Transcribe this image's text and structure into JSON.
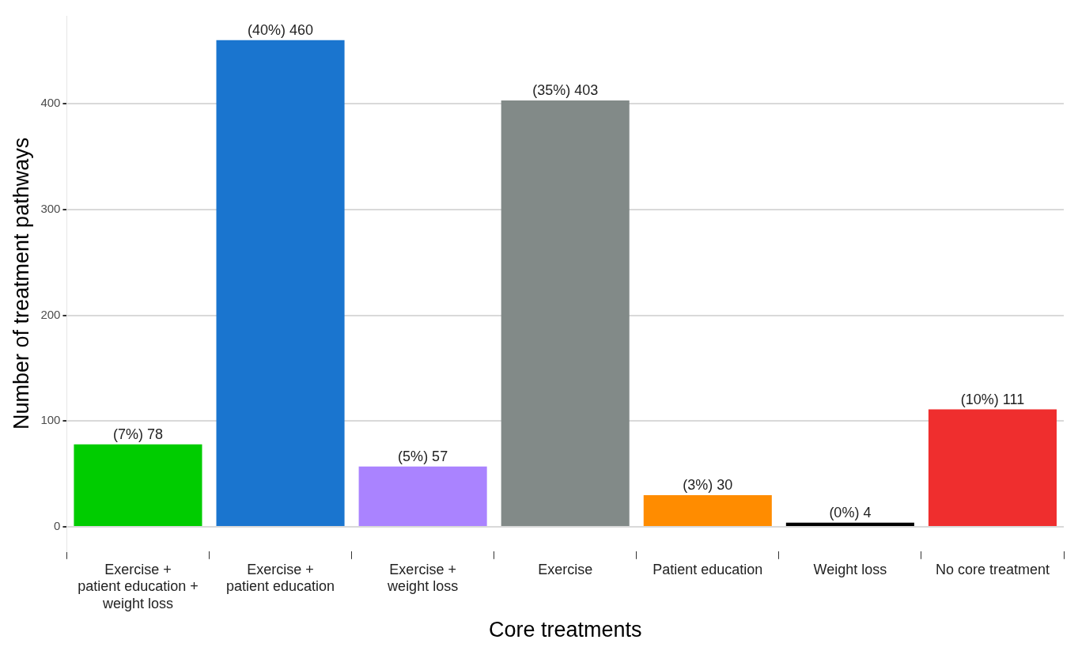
{
  "chart_data": {
    "type": "bar",
    "xlabel": "Core treatments",
    "ylabel": "Number of treatment pathways",
    "categories": [
      "Exercise + patient education + weight loss",
      "Exercise + patient education",
      "Exercise + weight loss",
      "Exercise",
      "Patient education",
      "Weight loss",
      "No core treatment"
    ],
    "values": [
      78,
      460,
      57,
      403,
      30,
      4,
      111
    ],
    "colors": [
      "#00cc00",
      "#1a75cf",
      "#aa83ff",
      "#828a88",
      "#ff8c00",
      "#000000",
      "#ef2e2e"
    ],
    "value_labels": [
      "(7%) 78",
      "(40%) 460",
      "(5%) 57",
      "(35%) 403",
      "(3%) 30",
      "(0%) 4",
      "(10%) 111"
    ],
    "ylim": [
      -23,
      483
    ],
    "yticks": [
      0,
      100,
      200,
      300,
      400
    ],
    "grid": "y",
    "legend": false
  }
}
